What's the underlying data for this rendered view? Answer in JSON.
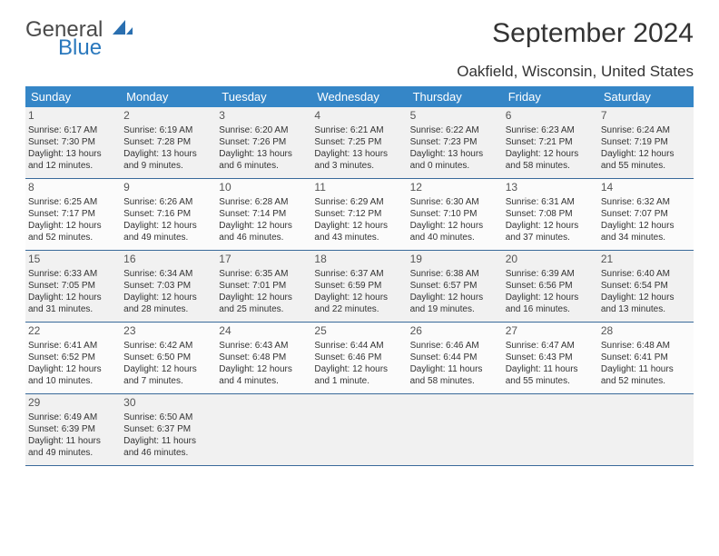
{
  "branding": {
    "word1": "General",
    "word2": "Blue",
    "logo_color": "#2a6fb0"
  },
  "title": "September 2024",
  "location": "Oakfield, Wisconsin, United States",
  "colors": {
    "header_bg": "#3586c7",
    "header_text": "#ffffff",
    "row_border": "#3a6a9a",
    "shade_bg": "#f1f1f1",
    "page_bg": "#ffffff",
    "text": "#333333"
  },
  "weekdays": [
    "Sunday",
    "Monday",
    "Tuesday",
    "Wednesday",
    "Thursday",
    "Friday",
    "Saturday"
  ],
  "days": [
    {
      "n": "1",
      "sr": "Sunrise: 6:17 AM",
      "ss": "Sunset: 7:30 PM",
      "dl": "Daylight: 13 hours and 12 minutes."
    },
    {
      "n": "2",
      "sr": "Sunrise: 6:19 AM",
      "ss": "Sunset: 7:28 PM",
      "dl": "Daylight: 13 hours and 9 minutes."
    },
    {
      "n": "3",
      "sr": "Sunrise: 6:20 AM",
      "ss": "Sunset: 7:26 PM",
      "dl": "Daylight: 13 hours and 6 minutes."
    },
    {
      "n": "4",
      "sr": "Sunrise: 6:21 AM",
      "ss": "Sunset: 7:25 PM",
      "dl": "Daylight: 13 hours and 3 minutes."
    },
    {
      "n": "5",
      "sr": "Sunrise: 6:22 AM",
      "ss": "Sunset: 7:23 PM",
      "dl": "Daylight: 13 hours and 0 minutes."
    },
    {
      "n": "6",
      "sr": "Sunrise: 6:23 AM",
      "ss": "Sunset: 7:21 PM",
      "dl": "Daylight: 12 hours and 58 minutes."
    },
    {
      "n": "7",
      "sr": "Sunrise: 6:24 AM",
      "ss": "Sunset: 7:19 PM",
      "dl": "Daylight: 12 hours and 55 minutes."
    },
    {
      "n": "8",
      "sr": "Sunrise: 6:25 AM",
      "ss": "Sunset: 7:17 PM",
      "dl": "Daylight: 12 hours and 52 minutes."
    },
    {
      "n": "9",
      "sr": "Sunrise: 6:26 AM",
      "ss": "Sunset: 7:16 PM",
      "dl": "Daylight: 12 hours and 49 minutes."
    },
    {
      "n": "10",
      "sr": "Sunrise: 6:28 AM",
      "ss": "Sunset: 7:14 PM",
      "dl": "Daylight: 12 hours and 46 minutes."
    },
    {
      "n": "11",
      "sr": "Sunrise: 6:29 AM",
      "ss": "Sunset: 7:12 PM",
      "dl": "Daylight: 12 hours and 43 minutes."
    },
    {
      "n": "12",
      "sr": "Sunrise: 6:30 AM",
      "ss": "Sunset: 7:10 PM",
      "dl": "Daylight: 12 hours and 40 minutes."
    },
    {
      "n": "13",
      "sr": "Sunrise: 6:31 AM",
      "ss": "Sunset: 7:08 PM",
      "dl": "Daylight: 12 hours and 37 minutes."
    },
    {
      "n": "14",
      "sr": "Sunrise: 6:32 AM",
      "ss": "Sunset: 7:07 PM",
      "dl": "Daylight: 12 hours and 34 minutes."
    },
    {
      "n": "15",
      "sr": "Sunrise: 6:33 AM",
      "ss": "Sunset: 7:05 PM",
      "dl": "Daylight: 12 hours and 31 minutes."
    },
    {
      "n": "16",
      "sr": "Sunrise: 6:34 AM",
      "ss": "Sunset: 7:03 PM",
      "dl": "Daylight: 12 hours and 28 minutes."
    },
    {
      "n": "17",
      "sr": "Sunrise: 6:35 AM",
      "ss": "Sunset: 7:01 PM",
      "dl": "Daylight: 12 hours and 25 minutes."
    },
    {
      "n": "18",
      "sr": "Sunrise: 6:37 AM",
      "ss": "Sunset: 6:59 PM",
      "dl": "Daylight: 12 hours and 22 minutes."
    },
    {
      "n": "19",
      "sr": "Sunrise: 6:38 AM",
      "ss": "Sunset: 6:57 PM",
      "dl": "Daylight: 12 hours and 19 minutes."
    },
    {
      "n": "20",
      "sr": "Sunrise: 6:39 AM",
      "ss": "Sunset: 6:56 PM",
      "dl": "Daylight: 12 hours and 16 minutes."
    },
    {
      "n": "21",
      "sr": "Sunrise: 6:40 AM",
      "ss": "Sunset: 6:54 PM",
      "dl": "Daylight: 12 hours and 13 minutes."
    },
    {
      "n": "22",
      "sr": "Sunrise: 6:41 AM",
      "ss": "Sunset: 6:52 PM",
      "dl": "Daylight: 12 hours and 10 minutes."
    },
    {
      "n": "23",
      "sr": "Sunrise: 6:42 AM",
      "ss": "Sunset: 6:50 PM",
      "dl": "Daylight: 12 hours and 7 minutes."
    },
    {
      "n": "24",
      "sr": "Sunrise: 6:43 AM",
      "ss": "Sunset: 6:48 PM",
      "dl": "Daylight: 12 hours and 4 minutes."
    },
    {
      "n": "25",
      "sr": "Sunrise: 6:44 AM",
      "ss": "Sunset: 6:46 PM",
      "dl": "Daylight: 12 hours and 1 minute."
    },
    {
      "n": "26",
      "sr": "Sunrise: 6:46 AM",
      "ss": "Sunset: 6:44 PM",
      "dl": "Daylight: 11 hours and 58 minutes."
    },
    {
      "n": "27",
      "sr": "Sunrise: 6:47 AM",
      "ss": "Sunset: 6:43 PM",
      "dl": "Daylight: 11 hours and 55 minutes."
    },
    {
      "n": "28",
      "sr": "Sunrise: 6:48 AM",
      "ss": "Sunset: 6:41 PM",
      "dl": "Daylight: 11 hours and 52 minutes."
    },
    {
      "n": "29",
      "sr": "Sunrise: 6:49 AM",
      "ss": "Sunset: 6:39 PM",
      "dl": "Daylight: 11 hours and 49 minutes."
    },
    {
      "n": "30",
      "sr": "Sunrise: 6:50 AM",
      "ss": "Sunset: 6:37 PM",
      "dl": "Daylight: 11 hours and 46 minutes."
    }
  ]
}
